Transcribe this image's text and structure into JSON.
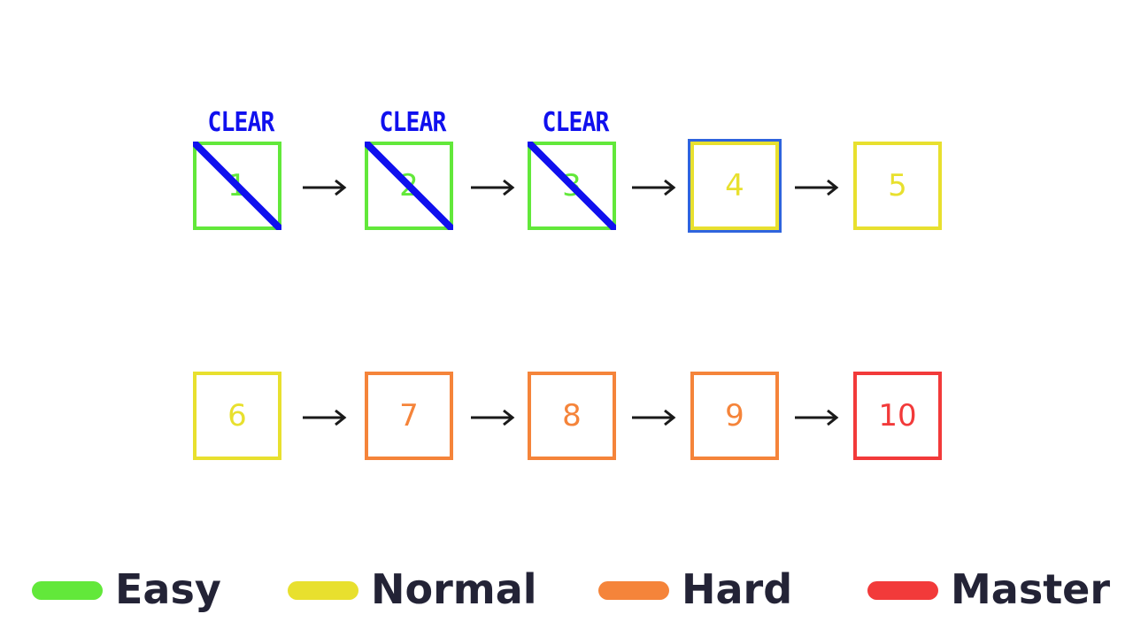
{
  "colors": {
    "Easy": "#62e83a",
    "Normal": "#e8e02e",
    "Hard": "#f5843a",
    "Master": "#f23a3a",
    "clear": "#1010ee",
    "selected": "#2f64de",
    "arrow": "#1a1a1a",
    "legend_text": "#232336"
  },
  "levels": [
    {
      "number": "1",
      "difficulty": "Easy",
      "cleared": true,
      "selected": false
    },
    {
      "number": "2",
      "difficulty": "Easy",
      "cleared": true,
      "selected": false
    },
    {
      "number": "3",
      "difficulty": "Easy",
      "cleared": true,
      "selected": false
    },
    {
      "number": "4",
      "difficulty": "Normal",
      "cleared": false,
      "selected": true
    },
    {
      "number": "5",
      "difficulty": "Normal",
      "cleared": false,
      "selected": false
    },
    {
      "number": "6",
      "difficulty": "Normal",
      "cleared": false,
      "selected": false
    },
    {
      "number": "7",
      "difficulty": "Hard",
      "cleared": false,
      "selected": false
    },
    {
      "number": "8",
      "difficulty": "Hard",
      "cleared": false,
      "selected": false
    },
    {
      "number": "9",
      "difficulty": "Hard",
      "cleared": false,
      "selected": false
    },
    {
      "number": "10",
      "difficulty": "Master",
      "cleared": false,
      "selected": false
    }
  ],
  "clear_label": "CLEAR",
  "arrow_icon": "right-arrow-icon",
  "legend": [
    {
      "label": "Easy",
      "difficulty": "Easy"
    },
    {
      "label": "Normal",
      "difficulty": "Normal"
    },
    {
      "label": "Hard",
      "difficulty": "Hard"
    },
    {
      "label": "Master",
      "difficulty": "Master"
    }
  ]
}
